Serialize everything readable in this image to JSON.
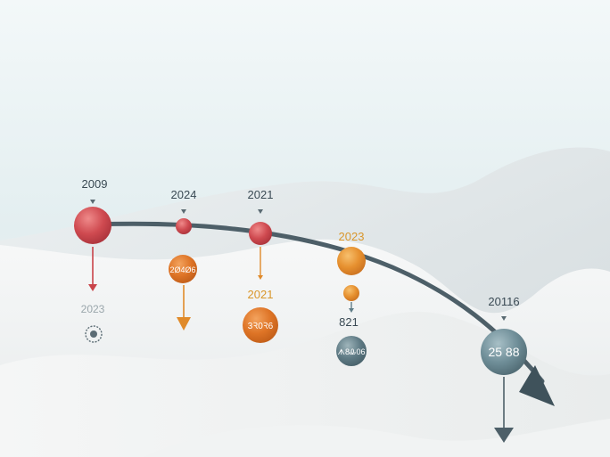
{
  "colors": {
    "red": "#c9444a",
    "orange": "#e08a2a",
    "slate": "#5f7d88",
    "curve": "#4d5f68",
    "label_dark": "#3a4a54",
    "label_grey": "#9aa6ab",
    "label_orange": "#d9962a"
  },
  "milestones": [
    {
      "year_label": "2009",
      "badge_label": "",
      "sub_year_label": "2023",
      "value_label": "",
      "color": "red",
      "icon": "gear-icon"
    },
    {
      "year_label": "2024",
      "badge_label": "2Ø4Ø6",
      "sub_year_label": "",
      "value_label": "",
      "color": "red"
    },
    {
      "year_label": "2021",
      "badge_label": "3Ꝛ0Ꝛ6",
      "sub_year_label": "2021",
      "value_label": "",
      "color": "red"
    },
    {
      "year_label": "2023",
      "badge_label": "",
      "sub_year_label": "",
      "value_label": "821",
      "bottom_badge_label": "ᗑ8Ꮂ06",
      "color": "orange"
    },
    {
      "year_label": "20116",
      "badge_label": "25 88",
      "sub_year_label": "",
      "value_label": "",
      "color": "slate"
    }
  ],
  "text": {
    "m1_year": "2009",
    "m1_sub": "2023",
    "m2_year": "2024",
    "m2_badge": "2Ø4Ø6",
    "m3_year": "2021",
    "m3_sub": "2021",
    "m3_badge": "3Ꝛ0Ꝛ6",
    "m4_year": "2023",
    "m4_value": "821",
    "m4_badge": "ᗑ8Ꮂ06",
    "m5_year": "20116",
    "m5_badge": "25 88"
  }
}
